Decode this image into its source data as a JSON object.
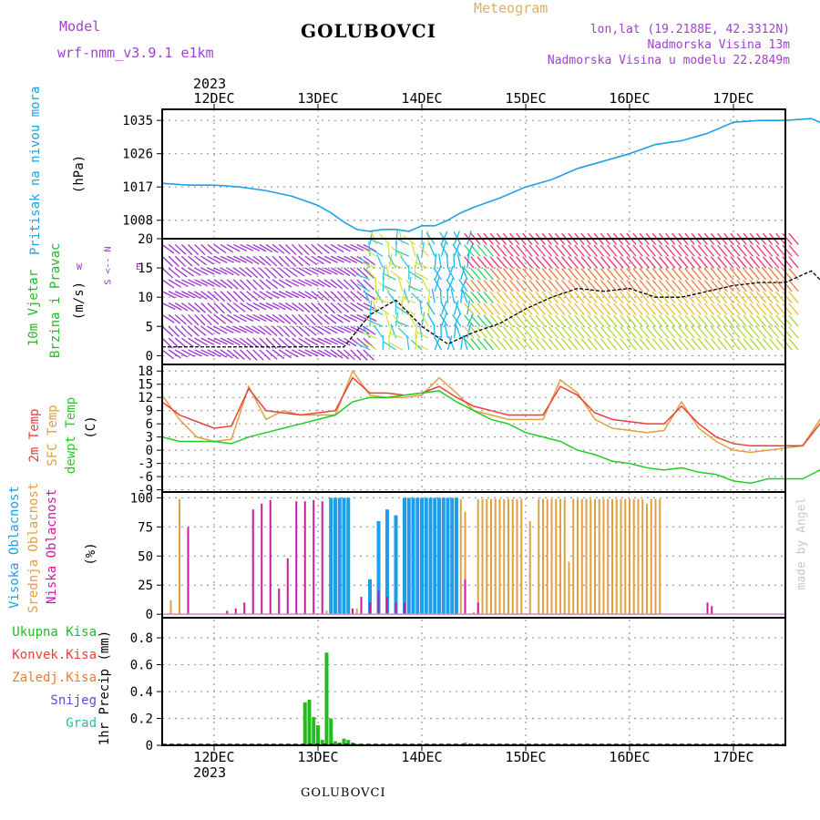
{
  "header": {
    "model_label": "Model",
    "model_value": "wrf-nmm_v3.9.1 e1km",
    "title": "GOLUBOVCI",
    "meteogram": "Meteogram",
    "lonlat": "lon,lat (19.2188E, 42.3312N)",
    "elevation": "Nadmorska Visina 13m",
    "model_elevation": "Nadmorska Visina u modelu 22.2849m",
    "year_top": "2023",
    "year_bottom": "2023",
    "footer_title": "GOLUBOVCI",
    "watermark": "made by Angel"
  },
  "colors": {
    "pressure": "#1ea0e6",
    "temp2m": "#e8413c",
    "sfc": "#e0a040",
    "dewpt": "#22cc22",
    "high_cloud": "#1e9ee6",
    "mid_cloud": "#e0a040",
    "low_cloud": "#cc1aa0",
    "purple": "#9b30d0"
  },
  "dates": [
    "12DEC",
    "13DEC",
    "14DEC",
    "15DEC",
    "16DEC",
    "17DEC"
  ],
  "panels": {
    "pressure": {
      "label": "Pritisak na nivou mora",
      "unit": "(hPa)",
      "yticks": [
        "1035",
        "1026",
        "1017",
        "1008"
      ]
    },
    "wind": {
      "label1": "10m Vjetar",
      "label2": "Brzina i Pravac",
      "unit": "(m/s)",
      "yticks": [
        "20",
        "15",
        "10",
        "5",
        "0"
      ],
      "compass": "W <-- E",
      "compass2": "S <-- N"
    },
    "temp": {
      "label1": "2m Temp",
      "label2": "SFC Temp",
      "label3": "dewpt Temp",
      "unit": "(C)",
      "yticks": [
        "18",
        "15",
        "12",
        "9",
        "6",
        "3",
        "0",
        "-3",
        "-6",
        "-9"
      ]
    },
    "cloud": {
      "label1": "Visoka Oblacnost",
      "label2": "Srednja Oblacnost",
      "label3": "Niska Oblacnost",
      "unit": "(%)",
      "yticks": [
        "100",
        "75",
        "50",
        "25",
        "0"
      ]
    },
    "precip": {
      "legend": [
        "Ukupna Kisa",
        "Konvek.Kisa",
        "Zaledj.Kisa",
        "Snijeg",
        "Grad"
      ],
      "unit": "1hr Precip (mm)",
      "yticks": [
        "0.8",
        "0.6",
        "0.4",
        "0.2",
        "0"
      ]
    }
  },
  "chart_data": [
    {
      "type": "line",
      "title": "Pritisak na nivou mora",
      "ylabel": "(hPa)",
      "ylim": [
        1003,
        1038
      ],
      "x_unit": "hours from 12DEC 00UTC",
      "x": [
        -12,
        -6,
        0,
        6,
        12,
        18,
        24,
        27,
        30,
        33,
        36,
        39,
        42,
        45,
        48,
        51,
        54,
        57,
        60,
        66,
        72,
        78,
        84,
        90,
        96,
        102,
        108,
        114,
        120,
        126,
        132,
        138,
        142
      ],
      "series": [
        {
          "name": "Pritisak na nivou mora",
          "values": [
            1018,
            1017.5,
            1017.5,
            1017,
            1016,
            1014.5,
            1012,
            1010,
            1007.5,
            1005.5,
            1005,
            1005.5,
            1005.5,
            1005,
            1006.5,
            1006.5,
            1008,
            1010,
            1011.5,
            1014,
            1017,
            1019,
            1022,
            1024,
            1026,
            1028.5,
            1029.5,
            1031.5,
            1034.5,
            1035,
            1035,
            1035.5,
            1033.5
          ]
        }
      ]
    },
    {
      "type": "line",
      "title": "10m Vjetar Brzina i Pravac",
      "ylabel": "(m/s)",
      "ylim": [
        -1.5,
        20
      ],
      "x_unit": "hours from 12DEC 00UTC",
      "x": [
        -12,
        -6,
        0,
        6,
        12,
        18,
        24,
        30,
        36,
        42,
        48,
        54,
        60,
        66,
        72,
        78,
        84,
        90,
        96,
        102,
        108,
        114,
        120,
        126,
        132,
        138,
        142
      ],
      "series": [
        {
          "name": "10m Vjetar",
          "values": [
            1.5,
            1.5,
            1.5,
            1.5,
            1.5,
            1.5,
            1.5,
            1.5,
            7,
            9.5,
            5,
            2,
            4,
            5.5,
            8,
            10,
            11.5,
            11,
            11.5,
            10,
            10,
            11,
            12,
            12.5,
            12.5,
            14.5,
            11.5
          ]
        }
      ]
    },
    {
      "type": "line",
      "title": "2m Temp / SFC Temp / dewpt Temp",
      "ylabel": "(C)",
      "ylim": [
        -9.5,
        19.5
      ],
      "x_unit": "hours from 12DEC 00UTC",
      "x": [
        -12,
        -8,
        -4,
        0,
        4,
        8,
        12,
        16,
        20,
        24,
        28,
        32,
        36,
        40,
        44,
        48,
        52,
        56,
        60,
        64,
        68,
        72,
        76,
        80,
        84,
        88,
        92,
        96,
        100,
        104,
        108,
        112,
        116,
        120,
        124,
        128,
        132,
        136,
        140,
        142
      ],
      "series": [
        {
          "name": "2m Temp",
          "values": [
            11,
            8,
            6.5,
            5,
            5.5,
            14,
            9,
            8.5,
            8,
            8.5,
            9,
            16.5,
            13,
            13,
            12.5,
            13,
            14.5,
            12,
            10,
            9,
            8,
            8,
            8,
            14.5,
            12.5,
            8.5,
            7,
            6.5,
            6,
            6,
            10,
            6,
            3,
            1.5,
            1,
            1,
            1,
            1,
            6,
            8
          ]
        },
        {
          "name": "SFC Temp",
          "values": [
            12.5,
            7,
            3,
            2,
            2.5,
            14.5,
            7,
            9,
            8,
            8,
            8,
            18,
            12.5,
            12,
            12,
            12.5,
            16.5,
            13,
            9,
            8,
            7,
            7,
            7,
            16,
            13,
            7,
            5,
            4.5,
            4,
            4.5,
            11,
            5,
            2,
            0,
            -0.5,
            0,
            0.5,
            1,
            7,
            10
          ]
        },
        {
          "name": "dewpt Temp",
          "values": [
            3,
            2,
            2,
            2,
            1.5,
            3,
            4,
            5,
            6,
            7,
            8,
            11,
            12,
            12,
            12.5,
            13,
            13.5,
            11,
            9,
            7,
            6,
            4,
            3,
            2,
            0,
            -1,
            -2.5,
            -3,
            -4,
            -4.5,
            -4,
            -5,
            -5.5,
            -7,
            -7.5,
            -6.5,
            -6.5,
            -6.5,
            -4.5,
            -3
          ]
        }
      ]
    },
    {
      "type": "bar",
      "title": "Oblacnost",
      "ylabel": "(%)",
      "ylim": [
        0,
        100
      ],
      "x_unit": "hours from 12DEC 00UTC",
      "series": [
        {
          "name": "Visoka Oblacnost",
          "x": [
            27,
            28,
            29,
            30,
            31,
            36,
            38,
            40,
            42,
            44,
            45,
            46,
            47,
            48,
            49,
            50,
            51,
            52,
            53,
            54,
            55,
            56
          ],
          "values": [
            100,
            100,
            100,
            100,
            100,
            30,
            80,
            90,
            85,
            100,
            100,
            100,
            100,
            100,
            100,
            100,
            100,
            100,
            100,
            100,
            100,
            100
          ]
        },
        {
          "name": "Srednja Oblacnost",
          "x": [
            -10,
            -8,
            26,
            33,
            42,
            44,
            45,
            46,
            47,
            48,
            49,
            50,
            51,
            52,
            53,
            54,
            55,
            56,
            57,
            58,
            60,
            61,
            62,
            63,
            64,
            65,
            66,
            67,
            68,
            69,
            70,
            71,
            73,
            75,
            76,
            77,
            78,
            79,
            80,
            81,
            82,
            83,
            84,
            85,
            86,
            87,
            88,
            89,
            90,
            91,
            92,
            93,
            94,
            95,
            96,
            97,
            98,
            99,
            100,
            101,
            102,
            103
          ],
          "values": [
            12,
            99,
            3,
            5,
            10,
            98,
            99,
            99,
            99,
            99,
            99,
            99,
            99,
            99,
            99,
            99,
            99,
            99,
            99,
            88,
            2,
            99,
            99,
            99,
            99,
            99,
            99,
            99,
            99,
            99,
            99,
            99,
            80,
            99,
            99,
            99,
            99,
            99,
            99,
            99,
            45,
            99,
            99,
            99,
            99,
            99,
            99,
            99,
            99,
            99,
            99,
            99,
            99,
            99,
            99,
            99,
            99,
            99,
            95,
            99,
            99,
            99
          ]
        },
        {
          "name": "Niska Oblacnost",
          "x": [
            -6,
            3,
            5,
            7,
            9,
            11,
            13,
            15,
            17,
            19,
            21,
            23,
            25,
            32,
            34,
            36,
            38,
            40,
            42,
            44,
            58,
            61,
            114,
            115
          ],
          "values": [
            75,
            3,
            5,
            10,
            90,
            95,
            98,
            22,
            48,
            97,
            97,
            98,
            97,
            5,
            15,
            10,
            20,
            15,
            10,
            10,
            30,
            10,
            10,
            7
          ]
        }
      ]
    },
    {
      "type": "bar",
      "title": "1hr Precip",
      "ylabel": "1hr Precip (mm)",
      "ylim": [
        0,
        0.95
      ],
      "x_unit": "hours from 12DEC 00UTC",
      "series": [
        {
          "name": "Ukupna Kisa",
          "x": [
            21,
            22,
            23,
            24,
            25,
            26,
            27,
            28,
            29,
            30,
            31,
            32,
            33
          ],
          "values": [
            0.32,
            0.34,
            0.21,
            0.15,
            0.04,
            0.69,
            0.2,
            0.03,
            0.02,
            0.05,
            0.04,
            0.02,
            0.01
          ]
        },
        {
          "name": "Zaledj.Kisa",
          "x": [
            58
          ],
          "values": [
            0.02
          ]
        }
      ]
    }
  ]
}
